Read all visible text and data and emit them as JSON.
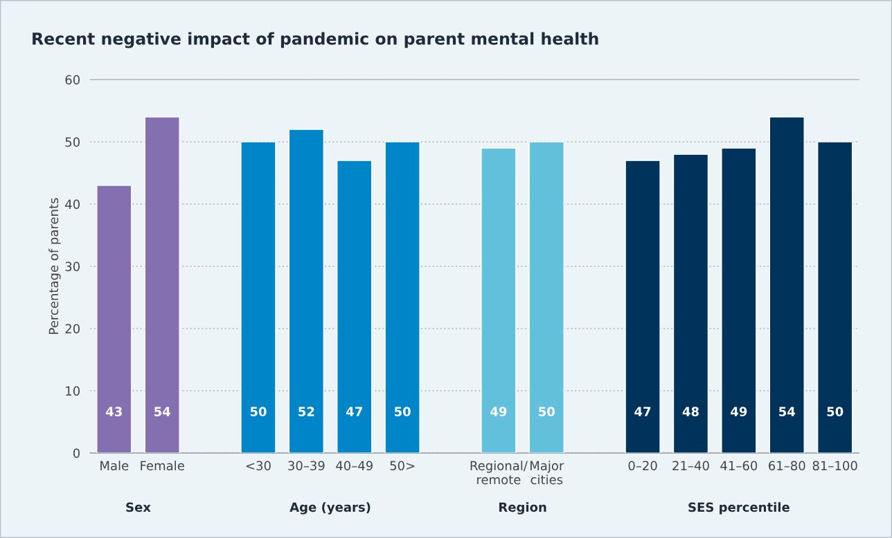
{
  "chart_data": {
    "type": "bar",
    "title": "Recent negative impact of pandemic on parent mental health",
    "ylabel": "Percentage of parents",
    "categories": [
      "Male",
      "Female",
      null,
      "<30",
      "30–39",
      "40–49",
      "50>",
      null,
      "Regional/\nremote",
      "Major\ncities",
      null,
      "0–20",
      "21–40",
      "41–60",
      "61–80",
      "81–100"
    ],
    "values": [
      43,
      54,
      null,
      50,
      52,
      47,
      50,
      null,
      49,
      50,
      null,
      47,
      48,
      49,
      54,
      50
    ],
    "colors": [
      "#8470b0",
      "#8470b0",
      null,
      "#0085c8",
      "#0085c8",
      "#0085c8",
      "#0085c8",
      null,
      "#62c0dc",
      "#62c0dc",
      null,
      "#00335c",
      "#00335c",
      "#00335c",
      "#00335c",
      "#00335c"
    ],
    "annotations": [
      "Sex",
      "Age (years)",
      "Region",
      "SES percentile"
    ],
    "ylim": [
      0,
      60
    ],
    "yticks": [
      0,
      10,
      20,
      30,
      40,
      50,
      60
    ],
    "grid": "y",
    "data_labels": true
  }
}
